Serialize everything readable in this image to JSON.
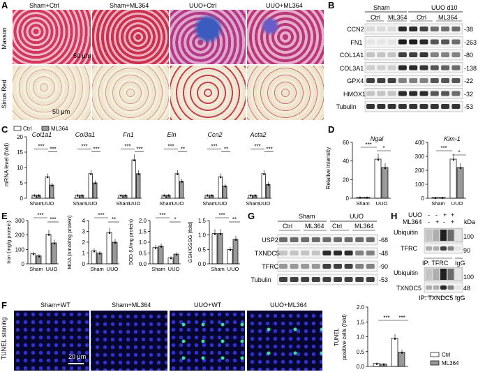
{
  "panels": {
    "A": "A",
    "B": "B",
    "C": "C",
    "D": "D",
    "E": "E",
    "F": "F",
    "G": "G",
    "H": "H"
  },
  "panel_a": {
    "columns": [
      "Sham+Ctrl",
      "Sham+ML364",
      "UUO+Ctrl",
      "UUO+ML364"
    ],
    "rows": [
      "Masson",
      "Sirius Red"
    ],
    "scale_bar": "50 μm"
  },
  "panel_b": {
    "groups": [
      "Sham",
      "UUO d10"
    ],
    "subgroups": [
      "Ctrl",
      "ML364",
      "Ctrl",
      "ML364"
    ],
    "proteins": [
      "CCN2",
      "FN1",
      "COL1A1",
      "COL3A1",
      "GPX4",
      "HMOX1",
      "Tubulin"
    ],
    "kda": [
      "38",
      "263",
      "80",
      "138",
      "22",
      "32",
      "53"
    ]
  },
  "panel_c": {
    "legend": [
      "Ctrl",
      "ML364"
    ],
    "ylabel": "mRNA level (fold)",
    "yticks": [
      "0",
      "5",
      "10",
      "15",
      "20"
    ],
    "genes": [
      "Col1a1",
      "Col3a1",
      "Fn1",
      "Eln",
      "Ccn2",
      "Acta2"
    ],
    "xgroups": [
      "Sham",
      "UUO"
    ],
    "sig_left": [
      "***",
      "***",
      "***",
      "***",
      "***",
      "***"
    ],
    "sig_right": [
      "***",
      "***",
      "***",
      "**",
      "**",
      "***"
    ]
  },
  "panel_d": {
    "ylabel": "Relative intensity",
    "ngal": {
      "title": "Ngal",
      "yticks": [
        "0",
        "20",
        "40",
        "60"
      ],
      "sig": [
        "***",
        "*"
      ]
    },
    "kim1": {
      "title": "Kim-1",
      "yticks": [
        "0",
        "100",
        "200",
        "300",
        "400"
      ],
      "sig": [
        "***",
        "*"
      ]
    },
    "xgroups": [
      "Sham",
      "UUO"
    ]
  },
  "panel_e": {
    "iron": {
      "ylabel": "Iron (mg/g protein)",
      "yticks": [
        "0",
        "100",
        "200",
        "300"
      ],
      "sig": [
        "***",
        "***"
      ]
    },
    "mda": {
      "ylabel": "MDA (nmol/mg protein)",
      "yticks": [
        "0",
        "1",
        "2",
        "3",
        "4"
      ],
      "sig": [
        "***",
        "**"
      ]
    },
    "sod": {
      "ylabel": "SOD (U/mg protein)",
      "yticks": [
        "0.0",
        "0.5",
        "1.0",
        "1.5",
        "2.0"
      ],
      "sig": [
        "***",
        "*"
      ]
    },
    "gsh": {
      "ylabel": "GSH/GSSG (fold)",
      "yticks": [
        "0.0",
        "0.5",
        "1.0",
        "1.5"
      ],
      "sig": [
        "***",
        "**"
      ]
    },
    "xgroups": [
      "Sham",
      "UUO"
    ]
  },
  "panel_g": {
    "groups": [
      "Sham",
      "UUO"
    ],
    "subgroups": [
      "Ctrl",
      "ML364",
      "Ctrl",
      "ML364"
    ],
    "proteins": [
      "USP2",
      "TXNDC5",
      "TFRC",
      "Tubulin"
    ],
    "kda": [
      "68",
      "48",
      "90",
      "53"
    ]
  },
  "panel_h": {
    "uuo_label": "UUO",
    "ml364_label": "ML364",
    "uuo_signs": [
      "-",
      "-",
      "+",
      "+"
    ],
    "ml364_signs": [
      "-",
      "+",
      "-",
      "+"
    ],
    "kda": "kDa",
    "top_labels": [
      "Ubiquitin",
      "TFRC"
    ],
    "top_kda": [
      "100",
      "90"
    ],
    "ip1": "IP: TFRC",
    "igg": "IgG",
    "bottom_labels": [
      "Ubiquitin",
      "TXNDC5"
    ],
    "bottom_kda": [
      "100",
      "48"
    ],
    "ip2": "IP: TXNDC5"
  },
  "panel_f": {
    "columns": [
      "Sham+WT",
      "Sham+ML364",
      "UUO+WT",
      "UUO+ML364"
    ],
    "row": "TUNEL staning",
    "scale_bar": "20 μm",
    "ylabel_line1": "TUNEL",
    "ylabel_line2": "positive cells (fold)",
    "yticks": [
      "0.0",
      "0.5",
      "1.0",
      "1.5",
      "2.0"
    ],
    "sig": [
      "***",
      "***"
    ],
    "legend": [
      "Ctrl",
      "ML364"
    ]
  },
  "chart_data": [
    {
      "type": "bar",
      "title": "",
      "ylabel": "mRNA level (fold)",
      "ylim": [
        0,
        20
      ],
      "categories": [
        "Col1a1",
        "Col3a1",
        "Fn1",
        "Eln",
        "Ccn2",
        "Acta2"
      ],
      "series": [
        {
          "name": "Ctrl Sham",
          "values": [
            1,
            1,
            1,
            1,
            1,
            1
          ]
        },
        {
          "name": "ML364 Sham",
          "values": [
            1,
            1,
            1,
            1,
            1,
            1
          ]
        },
        {
          "name": "Ctrl UUO",
          "values": [
            7,
            8,
            12.5,
            8,
            7,
            8
          ]
        },
        {
          "name": "ML364 UUO",
          "values": [
            4.3,
            5,
            8,
            5.5,
            4,
            4.5
          ]
        }
      ]
    },
    {
      "type": "bar",
      "title": "Ngal",
      "ylabel": "Relative intensity",
      "ylim": [
        0,
        60
      ],
      "categories": [
        "Sham",
        "UUO"
      ],
      "series": [
        {
          "name": "Ctrl",
          "values": [
            1,
            42
          ]
        },
        {
          "name": "ML364",
          "values": [
            1,
            33
          ]
        }
      ]
    },
    {
      "type": "bar",
      "title": "Kim-1",
      "ylim": [
        0,
        400
      ],
      "categories": [
        "Sham",
        "UUO"
      ],
      "series": [
        {
          "name": "Ctrl",
          "values": [
            5,
            280
          ]
        },
        {
          "name": "ML364",
          "values": [
            5,
            220
          ]
        }
      ]
    },
    {
      "type": "bar",
      "ylabel": "Iron (mg/g protein)",
      "ylim": [
        0,
        300
      ],
      "categories": [
        "Sham",
        "UUO"
      ],
      "series": [
        {
          "name": "Ctrl",
          "values": [
            70,
            205
          ]
        },
        {
          "name": "ML364",
          "values": [
            55,
            145
          ]
        }
      ]
    },
    {
      "type": "bar",
      "ylabel": "MDA (nmol/mg protein)",
      "ylim": [
        0,
        4
      ],
      "categories": [
        "Sham",
        "UUO"
      ],
      "series": [
        {
          "name": "Ctrl",
          "values": [
            1.2,
            2.9
          ]
        },
        {
          "name": "ML364",
          "values": [
            1.0,
            2.0
          ]
        }
      ]
    },
    {
      "type": "bar",
      "ylabel": "SOD (U/mg protein)",
      "ylim": [
        0,
        2
      ],
      "categories": [
        "Sham",
        "UUO"
      ],
      "series": [
        {
          "name": "Ctrl",
          "values": [
            0.75,
            0.28
          ]
        },
        {
          "name": "ML364",
          "values": [
            0.82,
            0.45
          ]
        }
      ]
    },
    {
      "type": "bar",
      "ylabel": "GSH/GSSG (fold)",
      "ylim": [
        0,
        1.5
      ],
      "categories": [
        "Sham",
        "UUO"
      ],
      "series": [
        {
          "name": "Ctrl",
          "values": [
            1.05,
            0.5
          ]
        },
        {
          "name": "ML364",
          "values": [
            1.05,
            0.85
          ]
        }
      ]
    },
    {
      "type": "bar",
      "ylabel": "TUNEL positive cells (fold)",
      "ylim": [
        0,
        2
      ],
      "categories": [
        "Sham",
        "UUO"
      ],
      "series": [
        {
          "name": "Ctrl",
          "values": [
            0.1,
            0.95
          ]
        },
        {
          "name": "ML364",
          "values": [
            0.08,
            0.48
          ]
        }
      ]
    }
  ]
}
